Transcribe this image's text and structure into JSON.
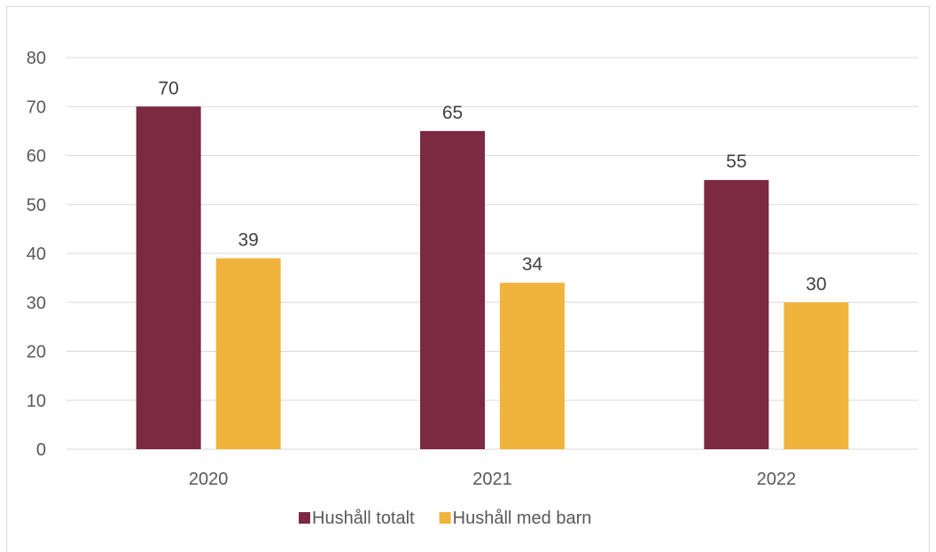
{
  "chart_data": {
    "type": "bar",
    "categories": [
      "2020",
      "2021",
      "2022"
    ],
    "series": [
      {
        "name": "Hushåll totalt",
        "values": [
          70,
          65,
          55
        ],
        "color": "#7b2a42"
      },
      {
        "name": "Hushåll med barn",
        "values": [
          39,
          34,
          30
        ],
        "color": "#f0b43c"
      }
    ],
    "ylim": [
      0,
      80
    ],
    "yticks": [
      0,
      10,
      20,
      30,
      40,
      50,
      60,
      70,
      80
    ],
    "grid": true,
    "legend": "bottom-center",
    "data_labels": true
  }
}
